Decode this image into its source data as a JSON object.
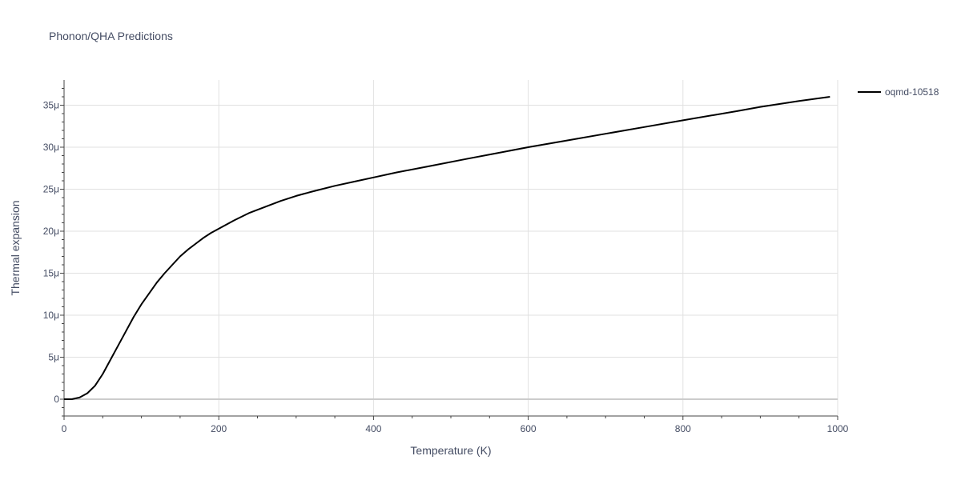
{
  "chart_data": {
    "type": "line",
    "title": "Phonon/QHA Predictions",
    "xlabel": "Temperature (K)",
    "ylabel": "Thermal expansion",
    "xlim": [
      0,
      1000
    ],
    "ylim": [
      -2e-06,
      3.8e-05
    ],
    "x_ticks": [
      {
        "value": 0,
        "label": "0"
      },
      {
        "value": 200,
        "label": "200"
      },
      {
        "value": 400,
        "label": "400"
      },
      {
        "value": 600,
        "label": "600"
      },
      {
        "value": 800,
        "label": "800"
      },
      {
        "value": 1000,
        "label": "1000"
      }
    ],
    "y_ticks": [
      {
        "value": 0,
        "label": "0"
      },
      {
        "value": 5e-06,
        "label": "5μ"
      },
      {
        "value": 1e-05,
        "label": "10μ"
      },
      {
        "value": 1.5e-05,
        "label": "15μ"
      },
      {
        "value": 2e-05,
        "label": "20μ"
      },
      {
        "value": 2.5e-05,
        "label": "25μ"
      },
      {
        "value": 3e-05,
        "label": "30μ"
      },
      {
        "value": 3.5e-05,
        "label": "35μ"
      }
    ],
    "grid": true,
    "legend_position": "top-right",
    "series": [
      {
        "name": "oqmd-10518",
        "color": "#000000",
        "x": [
          0,
          10,
          20,
          30,
          40,
          50,
          60,
          70,
          80,
          90,
          100,
          110,
          120,
          130,
          140,
          150,
          160,
          170,
          180,
          190,
          200,
          220,
          240,
          260,
          280,
          300,
          320,
          350,
          380,
          400,
          430,
          470,
          520,
          560,
          600,
          650,
          700,
          750,
          800,
          870,
          900,
          950,
          990
        ],
        "y": [
          0,
          0,
          2e-07,
          7e-07,
          1.6e-06,
          3e-06,
          4.7e-06,
          6.4e-06,
          8.1e-06,
          9.8e-06,
          1.13e-05,
          1.26e-05,
          1.39e-05,
          1.5e-05,
          1.6e-05,
          1.7e-05,
          1.78e-05,
          1.85e-05,
          1.92e-05,
          1.98e-05,
          2.03e-05,
          2.13e-05,
          2.22e-05,
          2.29e-05,
          2.36e-05,
          2.42e-05,
          2.47e-05,
          2.54e-05,
          2.6e-05,
          2.64e-05,
          2.7e-05,
          2.77e-05,
          2.86e-05,
          2.93e-05,
          3e-05,
          3.08e-05,
          3.16e-05,
          3.24e-05,
          3.32e-05,
          3.43e-05,
          3.48e-05,
          3.55e-05,
          3.6e-05
        ]
      }
    ]
  }
}
